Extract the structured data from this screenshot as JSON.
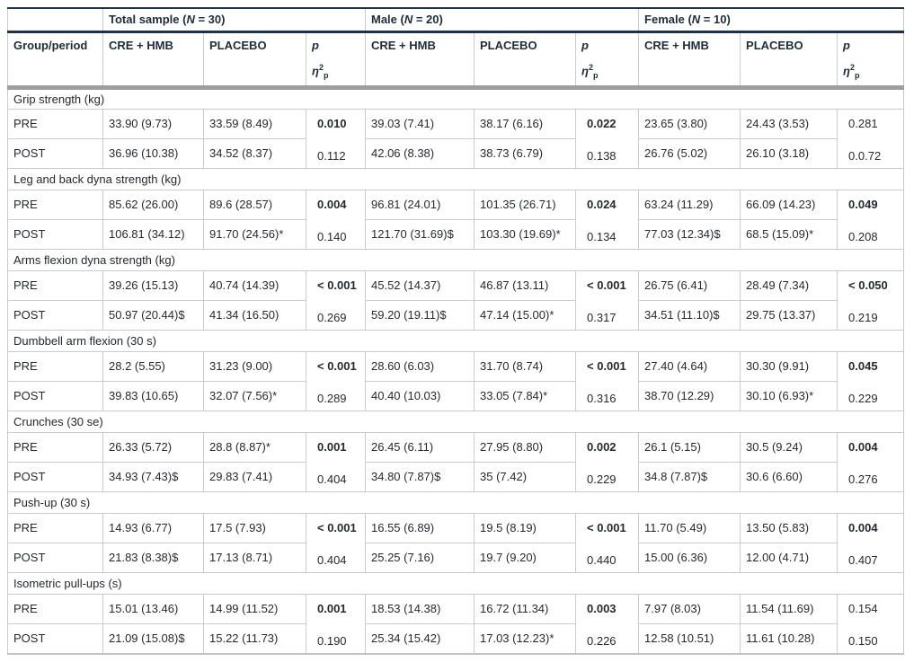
{
  "colors": {
    "header_line": "#1e3247",
    "header_thick_gray": "#9e9e9e",
    "grid_line": "#c9cccd",
    "text": "#26292e",
    "background": "#ffffff"
  },
  "header": {
    "group_period": "Group/period",
    "treatment": "CRE + HMB",
    "placebo": "PLACEBO",
    "p": "p",
    "eta": {
      "base": "η",
      "sup": "2",
      "sub": "p"
    },
    "groups": [
      {
        "prefix": "Total sample (",
        "n": "N",
        "suffix": " = 30)"
      },
      {
        "prefix": "Male (",
        "n": "N",
        "suffix": " = 20)"
      },
      {
        "prefix": "Female (",
        "n": "N",
        "suffix": " = 10)"
      }
    ]
  },
  "row_labels": {
    "pre": "PRE",
    "post": "POST"
  },
  "sections": [
    {
      "title": "Grip strength (kg)",
      "pre": [
        "33.90 (9.73)",
        "33.59 (8.49)",
        "39.03 (7.41)",
        "38.17 (6.16)",
        "23.65 (3.80)",
        "24.43 (3.53)"
      ],
      "post": [
        "36.96 (10.38)",
        "34.52 (8.37)",
        "42.06 (8.38)",
        "38.73 (6.79)",
        "26.76 (5.02)",
        "26.10 (3.18)"
      ],
      "p": [
        "0.010",
        "0.022",
        "0.281"
      ],
      "p_bold": [
        true,
        true,
        false
      ],
      "eta": [
        "0.112",
        "0.138",
        "0.0.72"
      ]
    },
    {
      "title": "Leg and back dyna strength (kg)",
      "pre": [
        "85.62 (26.00)",
        "89.6 (28.57)",
        "96.81 (24.01)",
        "101.35 (26.71)",
        "63.24 (11.29)",
        "66.09 (14.23)"
      ],
      "post": [
        "106.81 (34.12)",
        "91.70 (24.56)*",
        "121.70 (31.69)$",
        "103.30 (19.69)*",
        "77.03 (12.34)$",
        "68.5 (15.09)*"
      ],
      "p": [
        "0.004",
        "0.024",
        "0.049"
      ],
      "p_bold": [
        true,
        true,
        true
      ],
      "eta": [
        "0.140",
        "0.134",
        "0.208"
      ]
    },
    {
      "title": "Arms flexion dyna strength (kg)",
      "pre": [
        "39.26 (15.13)",
        "40.74 (14.39)",
        "45.52 (14.37)",
        "46.87 (13.11)",
        "26.75 (6.41)",
        "28.49 (7.34)"
      ],
      "post": [
        "50.97 (20.44)$",
        "41.34 (16.50)",
        "59.20 (19.11)$",
        "47.14 (15.00)*",
        "34.51 (11.10)$",
        "29.75 (13.37)"
      ],
      "p": [
        "< 0.001",
        "< 0.001",
        "< 0.050"
      ],
      "p_bold": [
        true,
        true,
        true
      ],
      "eta": [
        "0.269",
        "0.317",
        "0.219"
      ]
    },
    {
      "title": "Dumbbell arm flexion (30 s)",
      "pre": [
        "28.2 (5.55)",
        "31.23 (9.00)",
        "28.60 (6.03)",
        "31.70 (8.74)",
        "27.40 (4.64)",
        "30.30 (9.91)"
      ],
      "post": [
        "39.83 (10.65)",
        "32.07 (7.56)*",
        "40.40 (10.03)",
        "33.05 (7.84)*",
        "38.70 (12.29)",
        "30.10 (6.93)*"
      ],
      "p": [
        "< 0.001",
        "< 0.001",
        "0.045"
      ],
      "p_bold": [
        true,
        true,
        true
      ],
      "eta": [
        "0.289",
        "0.316",
        "0.229"
      ]
    },
    {
      "title": "Crunches (30 se)",
      "pre": [
        "26.33 (5.72)",
        "28.8 (8.87)*",
        "26.45 (6.11)",
        "27.95 (8.80)",
        "26.1 (5.15)",
        "30.5 (9.24)"
      ],
      "post": [
        "34.93 (7.43)$",
        "29.83 (7.41)",
        "34.80 (7.87)$",
        "35 (7.42)",
        "34.8 (7.87)$",
        "30.6 (6.60)"
      ],
      "p": [
        "0.001",
        "0.002",
        "0.004"
      ],
      "p_bold": [
        true,
        true,
        true
      ],
      "eta": [
        "0.404",
        "0.229",
        "0.276"
      ]
    },
    {
      "title": "Push-up (30 s)",
      "pre": [
        "14.93 (6.77)",
        "17.5 (7.93)",
        "16.55 (6.89)",
        "19.5 (8.19)",
        "11.70 (5.49)",
        "13.50 (5.83)"
      ],
      "post": [
        "21.83 (8.38)$",
        "17.13 (8.71)",
        "25.25 (7.16)",
        "19.7 (9.20)",
        "15.00 (6.36)",
        "12.00 (4.71)"
      ],
      "p": [
        "< 0.001",
        "< 0.001",
        "0.004"
      ],
      "p_bold": [
        true,
        true,
        true
      ],
      "eta": [
        "0.404",
        "0.440",
        "0.407"
      ]
    },
    {
      "title": "Isometric pull-ups (s)",
      "pre": [
        "15.01 (13.46)",
        "14.99 (11.52)",
        "18.53 (14.38)",
        "16.72 (11.34)",
        "7.97 (8.03)",
        "11.54 (11.69)"
      ],
      "post": [
        "21.09 (15.08)$",
        "15.22 (11.73)",
        "25.34 (15.42)",
        "17.03 (12.23)*",
        "12.58 (10.51)",
        "11.61 (10.28)"
      ],
      "p": [
        "0.001",
        "0.003",
        "0.154"
      ],
      "p_bold": [
        true,
        true,
        false
      ],
      "eta": [
        "0.190",
        "0.226",
        "0.150"
      ]
    }
  ]
}
